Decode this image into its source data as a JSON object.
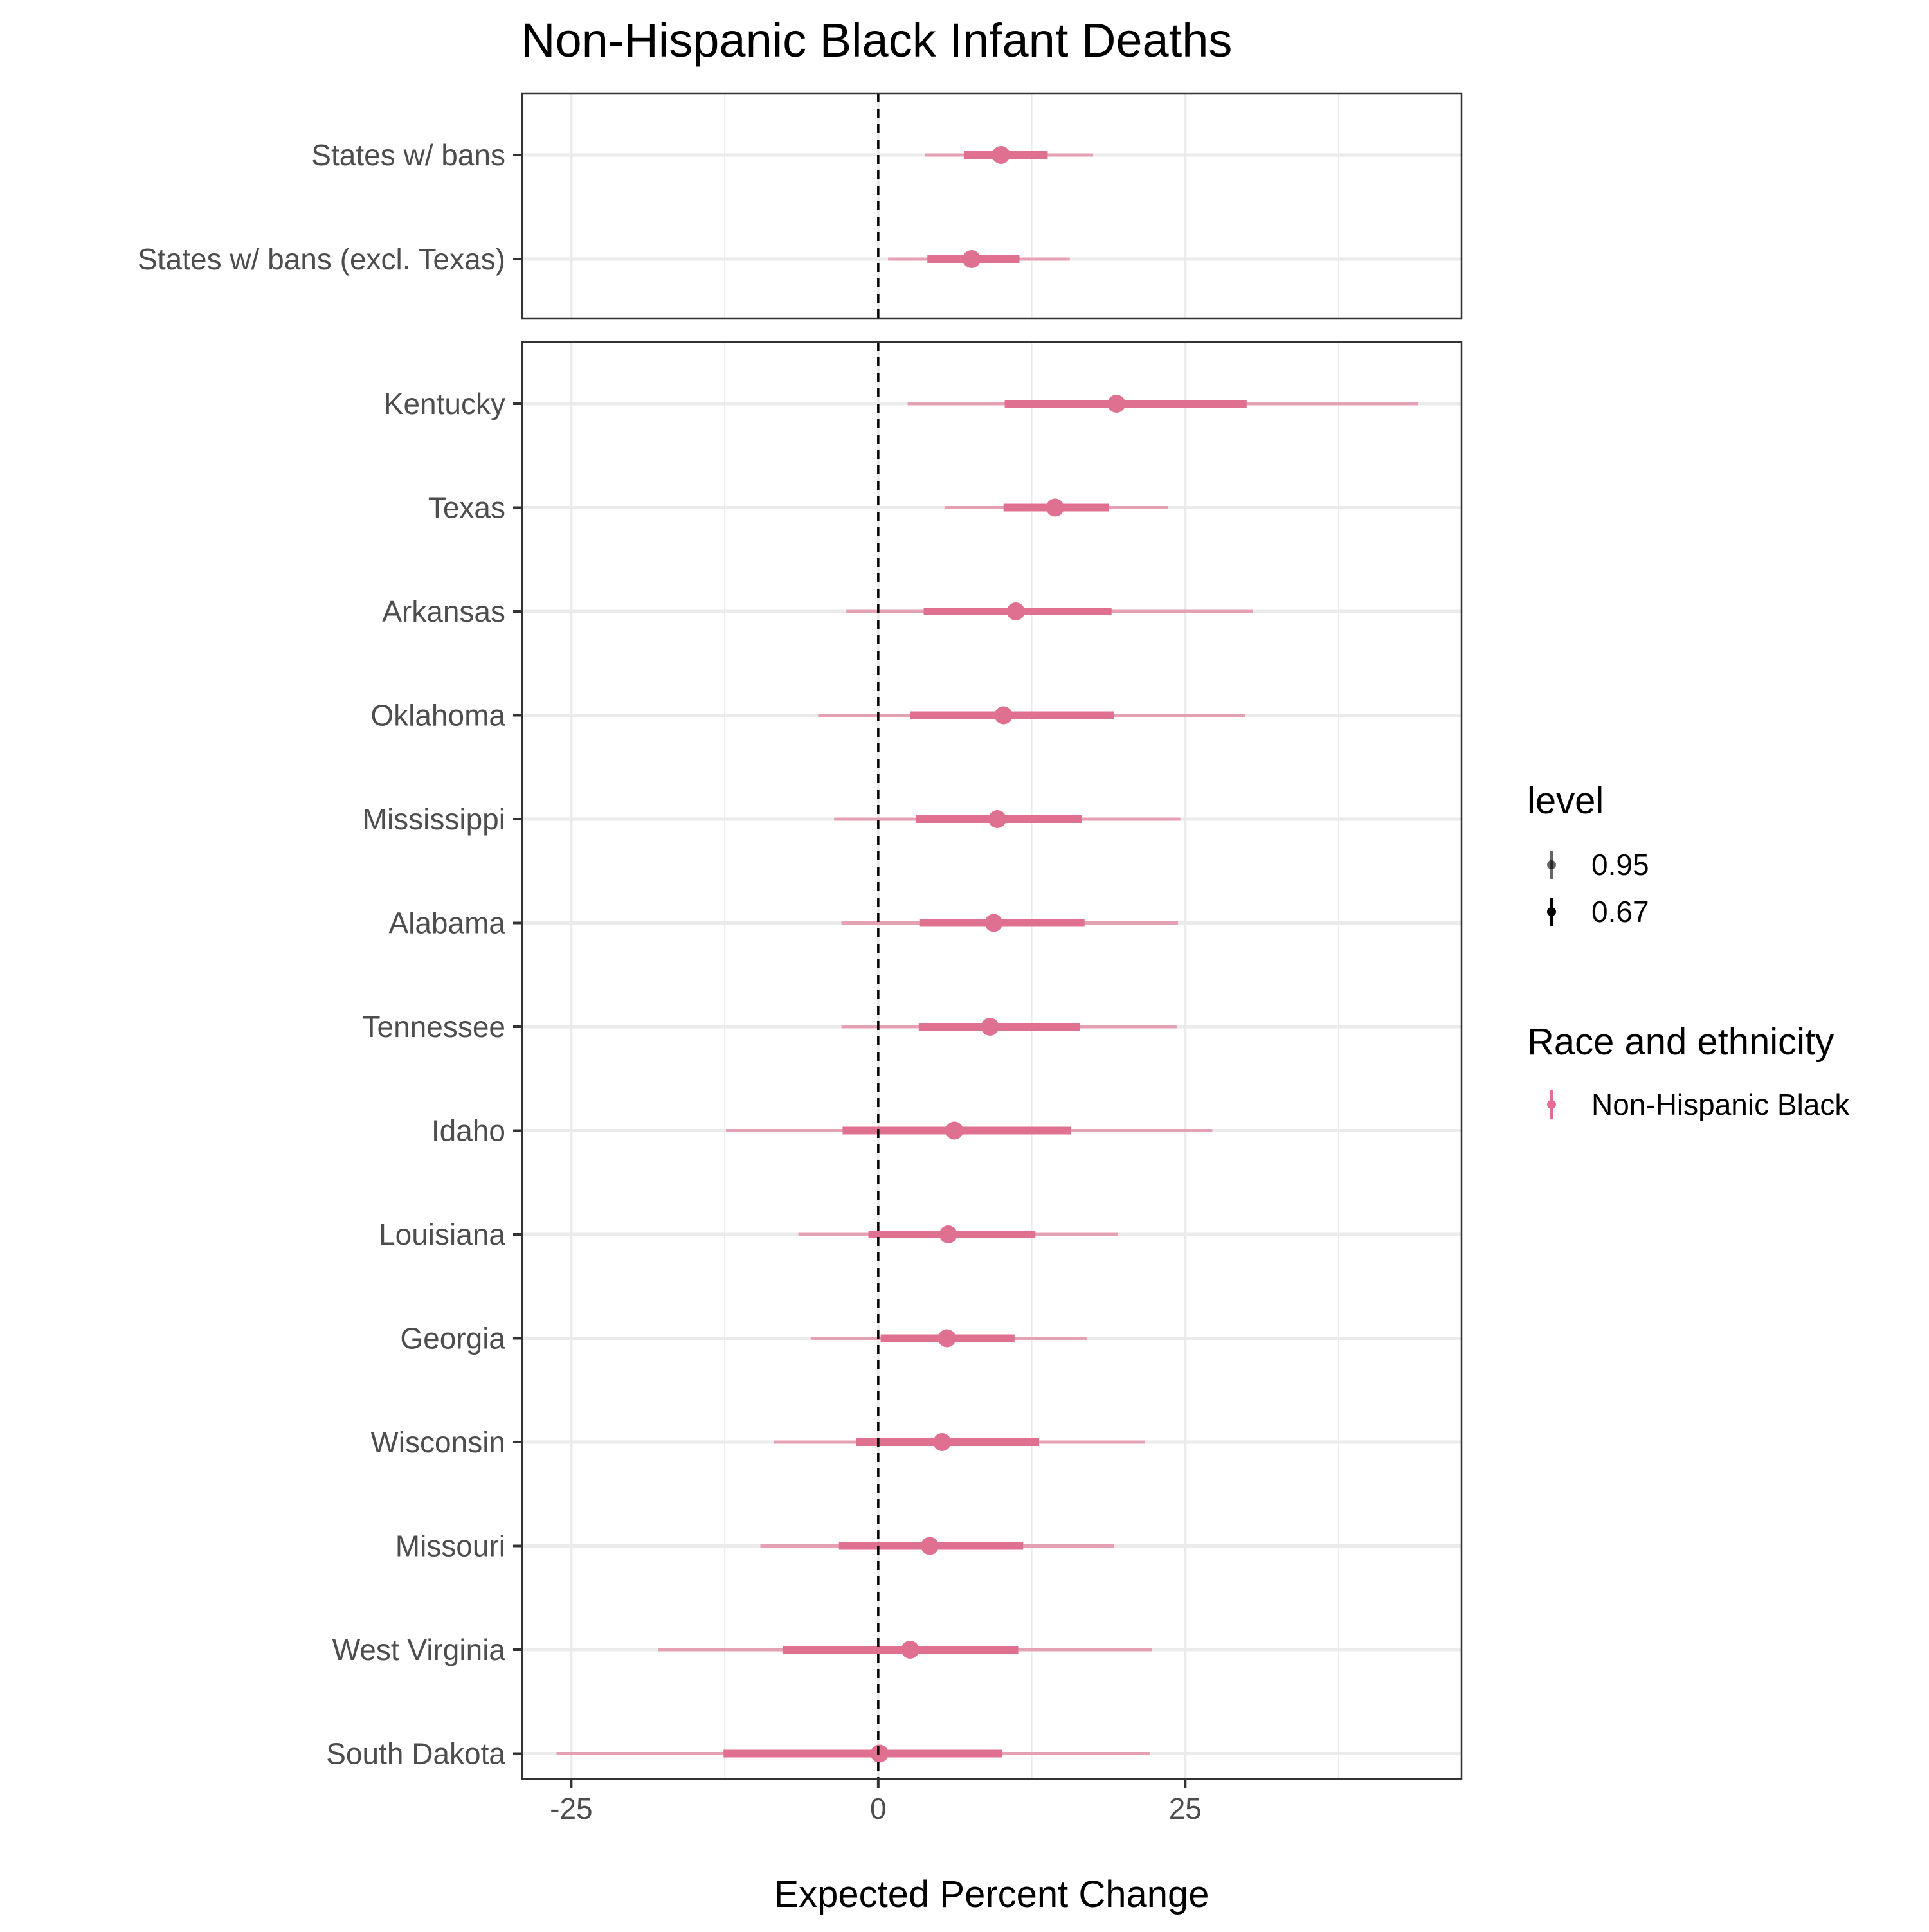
{
  "chart_data": {
    "type": "pointrange",
    "title": "Non-Hispanic Black Infant Deaths",
    "xlabel": "Expected Percent Change",
    "ylabel": "",
    "xlim": [
      -29,
      47.5
    ],
    "x_ticks": [
      -25,
      0,
      25
    ],
    "x_tick_labels": [
      "-25",
      "0",
      "25"
    ],
    "reference_line_x": 0,
    "grid": true,
    "colors": {
      "series": "#e07090",
      "panel_border": "#333333",
      "grid": "#ebebeb",
      "reference_line": "#000000"
    },
    "legend": {
      "position": "right",
      "level_title": "level",
      "level_entries": [
        "0.95",
        "0.67"
      ],
      "series_title": "Race and ethnicity",
      "series_entries": [
        "Non-Hispanic Black"
      ]
    },
    "panels": [
      {
        "rows": [
          {
            "label": "States w/ bans",
            "estimate": 10.0,
            "ci67": [
              7.0,
              13.8
            ],
            "ci95": [
              3.8,
              17.5
            ]
          },
          {
            "label": "States w/ bans (excl. Texas)",
            "estimate": 7.6,
            "ci67": [
              4.0,
              11.5
            ],
            "ci95": [
              0.8,
              15.6
            ]
          }
        ]
      },
      {
        "rows": [
          {
            "label": "Kentucky",
            "estimate": 19.4,
            "ci67": [
              10.3,
              30.0
            ],
            "ci95": [
              2.4,
              44.0
            ]
          },
          {
            "label": "Texas",
            "estimate": 14.4,
            "ci67": [
              10.2,
              18.8
            ],
            "ci95": [
              5.4,
              23.6
            ]
          },
          {
            "label": "Arkansas",
            "estimate": 11.2,
            "ci67": [
              3.7,
              19.0
            ],
            "ci95": [
              -2.6,
              30.5
            ]
          },
          {
            "label": "Oklahoma",
            "estimate": 10.2,
            "ci67": [
              2.6,
              19.2
            ],
            "ci95": [
              -4.9,
              29.9
            ]
          },
          {
            "label": "Mississippi",
            "estimate": 9.7,
            "ci67": [
              3.1,
              16.6
            ],
            "ci95": [
              -3.6,
              24.6
            ]
          },
          {
            "label": "Alabama",
            "estimate": 9.4,
            "ci67": [
              3.4,
              16.8
            ],
            "ci95": [
              -3.0,
              24.4
            ]
          },
          {
            "label": "Tennessee",
            "estimate": 9.1,
            "ci67": [
              3.3,
              16.4
            ],
            "ci95": [
              -3.0,
              24.3
            ]
          },
          {
            "label": "Idaho",
            "estimate": 6.2,
            "ci67": [
              -2.9,
              15.7
            ],
            "ci95": [
              -12.4,
              27.2
            ]
          },
          {
            "label": "Louisiana",
            "estimate": 5.7,
            "ci67": [
              -0.8,
              12.8
            ],
            "ci95": [
              -6.5,
              19.5
            ]
          },
          {
            "label": "Georgia",
            "estimate": 5.6,
            "ci67": [
              0.2,
              11.1
            ],
            "ci95": [
              -5.5,
              17.0
            ]
          },
          {
            "label": "Wisconsin",
            "estimate": 5.2,
            "ci67": [
              -1.8,
              13.1
            ],
            "ci95": [
              -8.5,
              21.7
            ]
          },
          {
            "label": "Missouri",
            "estimate": 4.2,
            "ci67": [
              -3.2,
              11.8
            ],
            "ci95": [
              -9.6,
              19.2
            ]
          },
          {
            "label": "West Virginia",
            "estimate": 2.6,
            "ci67": [
              -7.8,
              11.4
            ],
            "ci95": [
              -17.9,
              22.3
            ]
          },
          {
            "label": "South Dakota",
            "estimate": 0.1,
            "ci67": [
              -12.6,
              10.1
            ],
            "ci95": [
              -26.2,
              22.1
            ]
          }
        ]
      }
    ]
  }
}
